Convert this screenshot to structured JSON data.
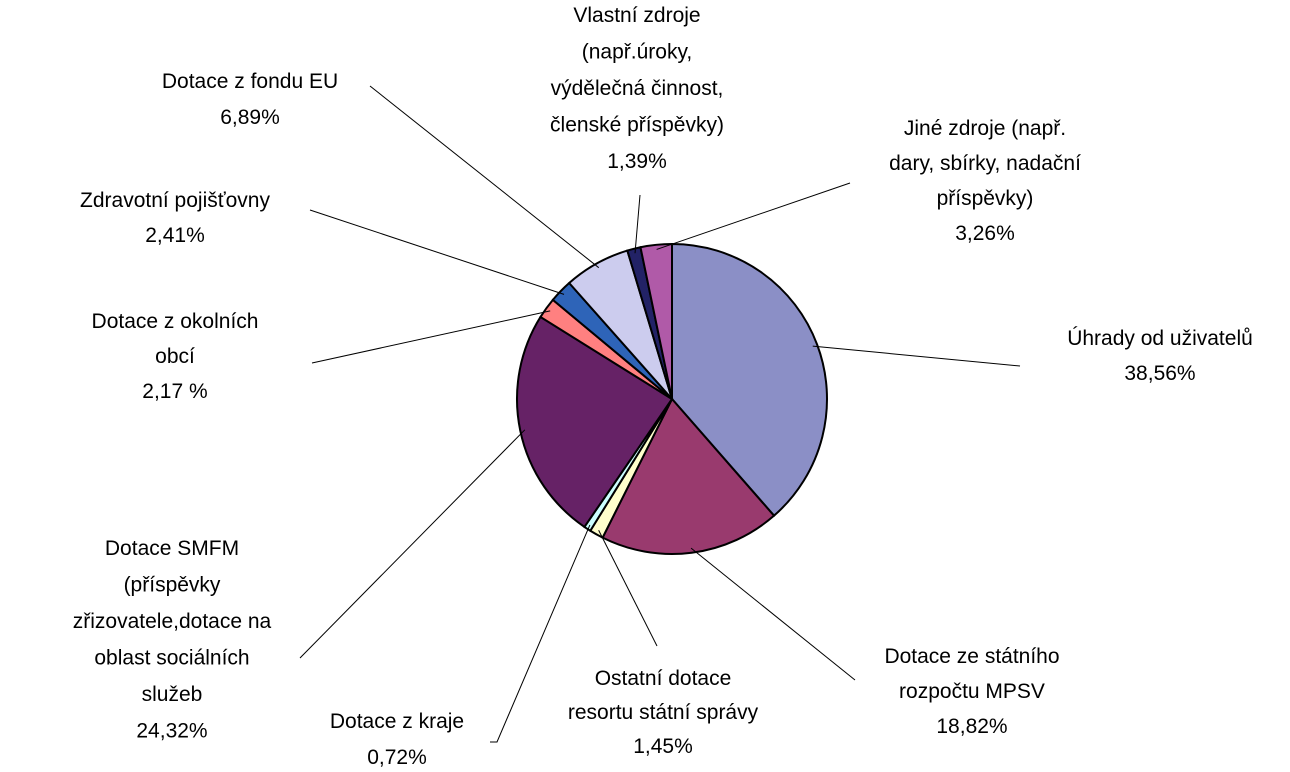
{
  "chart_data": {
    "type": "pie",
    "categories": [
      [
        "Úhrady od uživatelů"
      ],
      [
        "Dotace ze státního",
        "rozpočtu MPSV"
      ],
      [
        "Ostatní dotace",
        "resortu státní správy"
      ],
      [
        "Dotace z kraje"
      ],
      [
        "Dotace SMFM",
        "(příspěvky",
        "zřizovatele,dotace na",
        "oblast sociálních",
        "služeb"
      ],
      [
        "Dotace z okolních",
        "obcí"
      ],
      [
        "Zdravotní pojišťovny"
      ],
      [
        "Dotace z fondu EU"
      ],
      [
        "Vlastní zdroje",
        "(např.úroky,",
        "výdělečná činnost,",
        "členské příspěvky)"
      ],
      [
        "Jiné zdroje (např.",
        "dary, sbírky, nadační",
        "příspěvky)"
      ]
    ],
    "values": [
      38.56,
      18.82,
      1.45,
      0.72,
      24.32,
      2.17,
      2.41,
      6.89,
      1.39,
      3.26
    ],
    "value_labels": [
      "38,56%",
      "18,82%",
      "1,45%",
      "0,72%",
      "24,32%",
      "2,17 %",
      "2,41%",
      "6,89%",
      "1,39%",
      "3,26%"
    ],
    "colors": [
      "#8b8fc6",
      "#993a6e",
      "#ffffcc",
      "#ccffff",
      "#662266",
      "#ff8080",
      "#2e64b8",
      "#ccccee",
      "#222266",
      "#b05aa8"
    ]
  }
}
